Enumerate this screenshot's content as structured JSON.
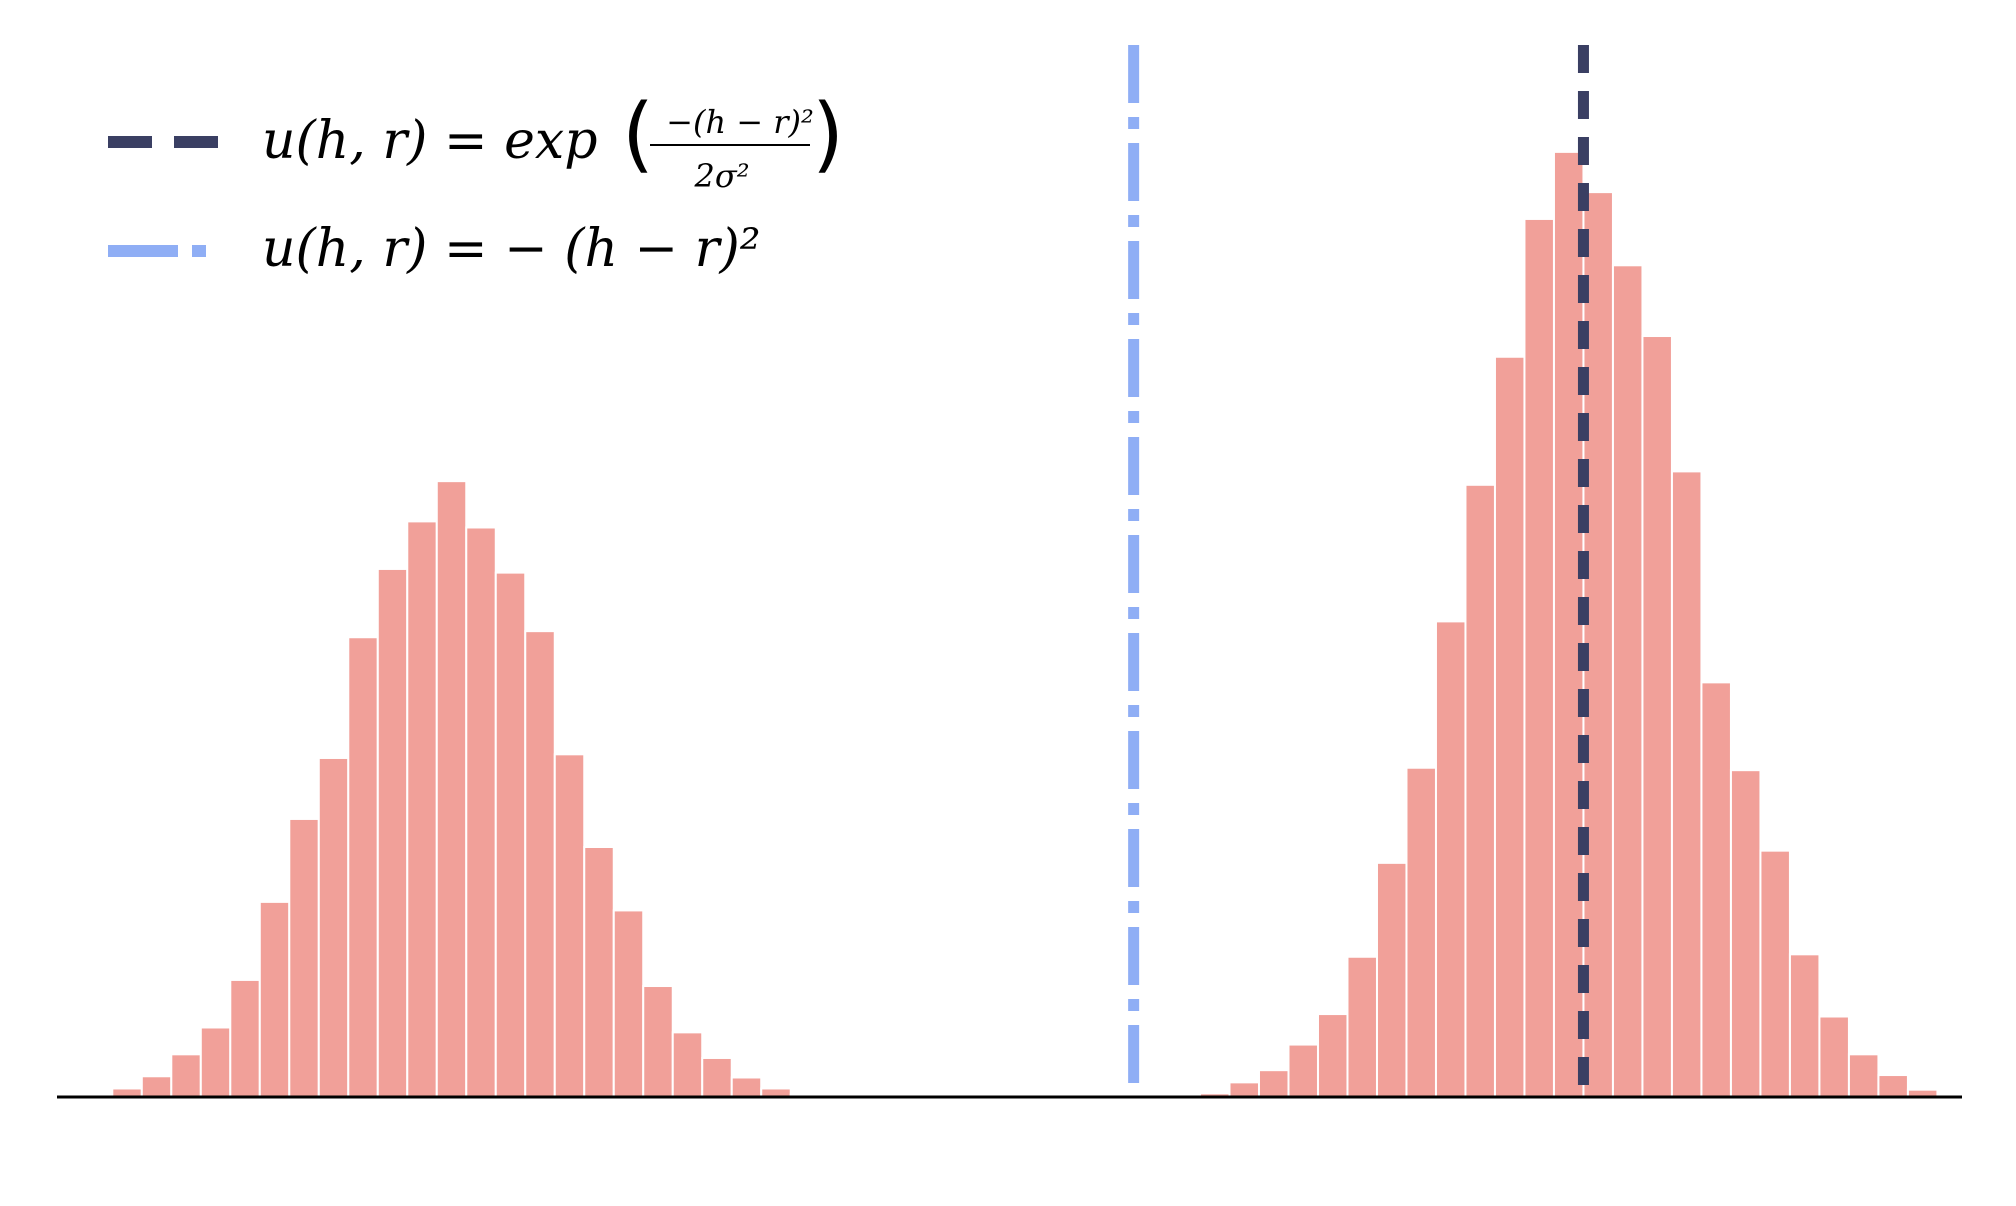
{
  "chart_data": {
    "type": "bar",
    "title": "",
    "xlabel": "",
    "ylabel": "",
    "axes": {
      "x_ticks_visible": false,
      "y_axis_visible": false,
      "bottom_spine": true
    },
    "xlim": [
      0,
      1550
    ],
    "ylim": [
      0,
      820
    ],
    "grid": false,
    "bar_color": "#F1A099",
    "bar_edge_color": "#ffffff",
    "series": [
      {
        "bin_width": 24,
        "bins_left_edge": [
          45,
          69,
          93,
          117,
          141,
          165,
          189,
          213,
          237,
          261,
          285,
          309,
          333,
          357,
          381,
          405,
          429,
          453,
          477,
          501,
          525,
          549,
          573,
          597
        ],
        "values": [
          7,
          17,
          35,
          57,
          96,
          160,
          228,
          278,
          377,
          433,
          472,
          505,
          467,
          430,
          382,
          281,
          205,
          153,
          91,
          53,
          32,
          16,
          7,
          2
        ]
      },
      {
        "bin_width": 24,
        "bins_left_edge": [
          930,
          954,
          978,
          1002,
          1026,
          1050,
          1074,
          1098,
          1122,
          1146,
          1170,
          1194,
          1218,
          1242,
          1266,
          1290,
          1314,
          1338,
          1362,
          1386,
          1410,
          1434,
          1458,
          1482,
          1506
        ],
        "values": [
          3,
          12,
          22,
          43,
          68,
          115,
          192,
          270,
          390,
          502,
          607,
          720,
          775,
          742,
          682,
          624,
          513,
          340,
          268,
          202,
          117,
          66,
          35,
          18,
          6
        ]
      }
    ],
    "reference_lines": [
      {
        "x": 876,
        "color": "#8FAEF5",
        "style": "dashdot"
      },
      {
        "x": 1242,
        "color": "#3A3F63",
        "style": "dashed"
      }
    ],
    "legend": {
      "placement": "top-left",
      "entries": [
        {
          "style": "dashed",
          "color": "#3A3F63",
          "label_prefix": "u(h, r) = exp",
          "fraction_numerator": "−(h − r)²",
          "fraction_denominator": "2σ²"
        },
        {
          "style": "dashdot",
          "color": "#8FAEF5",
          "label": "u(h, r) = − (h − r)²"
        }
      ]
    }
  }
}
